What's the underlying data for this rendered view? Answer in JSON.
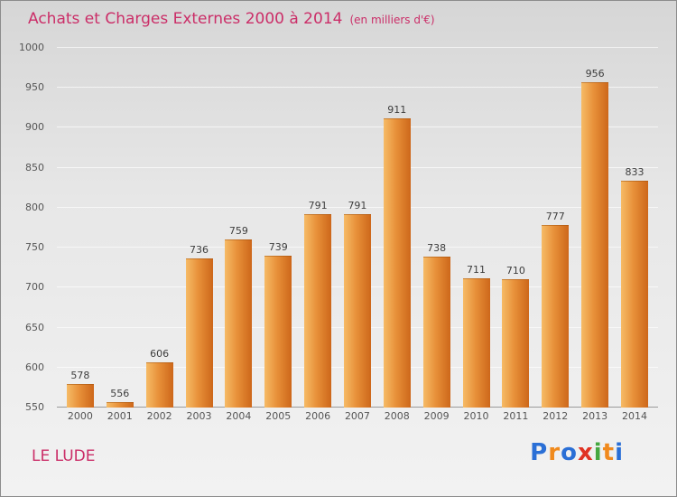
{
  "header": {
    "title": "Achats et Charges Externes 2000 à 2014",
    "subtitle": "(en milliers d'€)"
  },
  "footer": {
    "place": "LE LUDE",
    "logo_letters": [
      {
        "ch": "P",
        "color": "#2a6fd6"
      },
      {
        "ch": "r",
        "color": "#f08a1d"
      },
      {
        "ch": "o",
        "color": "#2a6fd6"
      },
      {
        "ch": "x",
        "color": "#e03223"
      },
      {
        "ch": "i",
        "color": "#45a740"
      },
      {
        "ch": "t",
        "color": "#f08a1d"
      },
      {
        "ch": "i",
        "color": "#2a6fd6"
      }
    ]
  },
  "colors": {
    "title_pink": "#cb2e68",
    "axis_text": "#555555",
    "value_label": "#3d3d3d"
  },
  "chart_data": {
    "type": "bar",
    "title": "Achats et Charges Externes 2000 à 2014 (en milliers d'€)",
    "categories": [
      "2000",
      "2001",
      "2002",
      "2003",
      "2004",
      "2005",
      "2006",
      "2007",
      "2008",
      "2009",
      "2010",
      "2011",
      "2012",
      "2013",
      "2014"
    ],
    "values": [
      578,
      556,
      606,
      736,
      759,
      739,
      791,
      791,
      911,
      738,
      711,
      710,
      777,
      956,
      833
    ],
    "xlabel": "",
    "ylabel": "",
    "ylim": [
      550,
      1000
    ],
    "ytick_step": 50,
    "grid": true,
    "legend": false,
    "bar_color_left": "#f6bb66",
    "bar_color_mid": "#e8913a",
    "bar_color_right": "#cd671a"
  }
}
